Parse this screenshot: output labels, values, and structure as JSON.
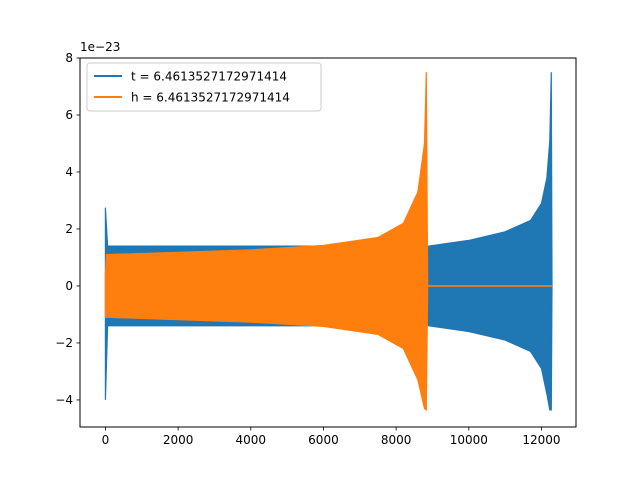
{
  "chart_data": {
    "type": "line",
    "title": "",
    "xlabel": "",
    "ylabel": "",
    "y_scale_label": "1e−23",
    "xlim": [
      -700,
      12950
    ],
    "ylim": [
      -4.95,
      8.0
    ],
    "grid": false,
    "legend_position": "upper-left",
    "x_ticks": [
      0,
      2000,
      4000,
      6000,
      8000,
      10000,
      12000
    ],
    "x_tick_labels": [
      "0",
      "2000",
      "4000",
      "6000",
      "8000",
      "10000",
      "12000"
    ],
    "y_ticks": [
      -4,
      -2,
      0,
      2,
      4,
      6,
      8
    ],
    "y_tick_labels": [
      "−4",
      "−2",
      "0",
      "2",
      "4",
      "6",
      "8"
    ],
    "series": [
      {
        "name": "t = 6.4613527172971414",
        "color": "#1f77b4",
        "envelope": [
          {
            "x": 0,
            "upper": 2.75,
            "lower": -4.0
          },
          {
            "x": 60,
            "upper": 1.4,
            "lower": -1.4
          },
          {
            "x": 8900,
            "upper": 1.4,
            "lower": -1.4
          },
          {
            "x": 10000,
            "upper": 1.6,
            "lower": -1.6
          },
          {
            "x": 11000,
            "upper": 1.9,
            "lower": -1.9
          },
          {
            "x": 11700,
            "upper": 2.3,
            "lower": -2.3
          },
          {
            "x": 12000,
            "upper": 2.9,
            "lower": -2.9
          },
          {
            "x": 12150,
            "upper": 3.8,
            "lower": -3.8
          },
          {
            "x": 12230,
            "upper": 5.1,
            "lower": -4.35
          },
          {
            "x": 12270,
            "upper": 7.5,
            "lower": -4.35
          },
          {
            "x": 12290,
            "upper": 0,
            "lower": 0
          }
        ]
      },
      {
        "name": "h = 6.4613527172971414",
        "color": "#ff7f0e",
        "envelope": [
          {
            "x": 0,
            "upper": 0.4,
            "lower": -1.1
          },
          {
            "x": 30,
            "upper": 1.1,
            "lower": -1.1
          },
          {
            "x": 2000,
            "upper": 1.18,
            "lower": -1.18
          },
          {
            "x": 4000,
            "upper": 1.27,
            "lower": -1.27
          },
          {
            "x": 6000,
            "upper": 1.42,
            "lower": -1.42
          },
          {
            "x": 7500,
            "upper": 1.7,
            "lower": -1.7
          },
          {
            "x": 8200,
            "upper": 2.2,
            "lower": -2.2
          },
          {
            "x": 8600,
            "upper": 3.3,
            "lower": -3.3
          },
          {
            "x": 8780,
            "upper": 5.0,
            "lower": -4.3
          },
          {
            "x": 8830,
            "upper": 7.5,
            "lower": -4.35
          },
          {
            "x": 8870,
            "upper": 0,
            "lower": 0
          },
          {
            "x": 12290,
            "upper": 0,
            "lower": 0
          }
        ]
      }
    ]
  }
}
